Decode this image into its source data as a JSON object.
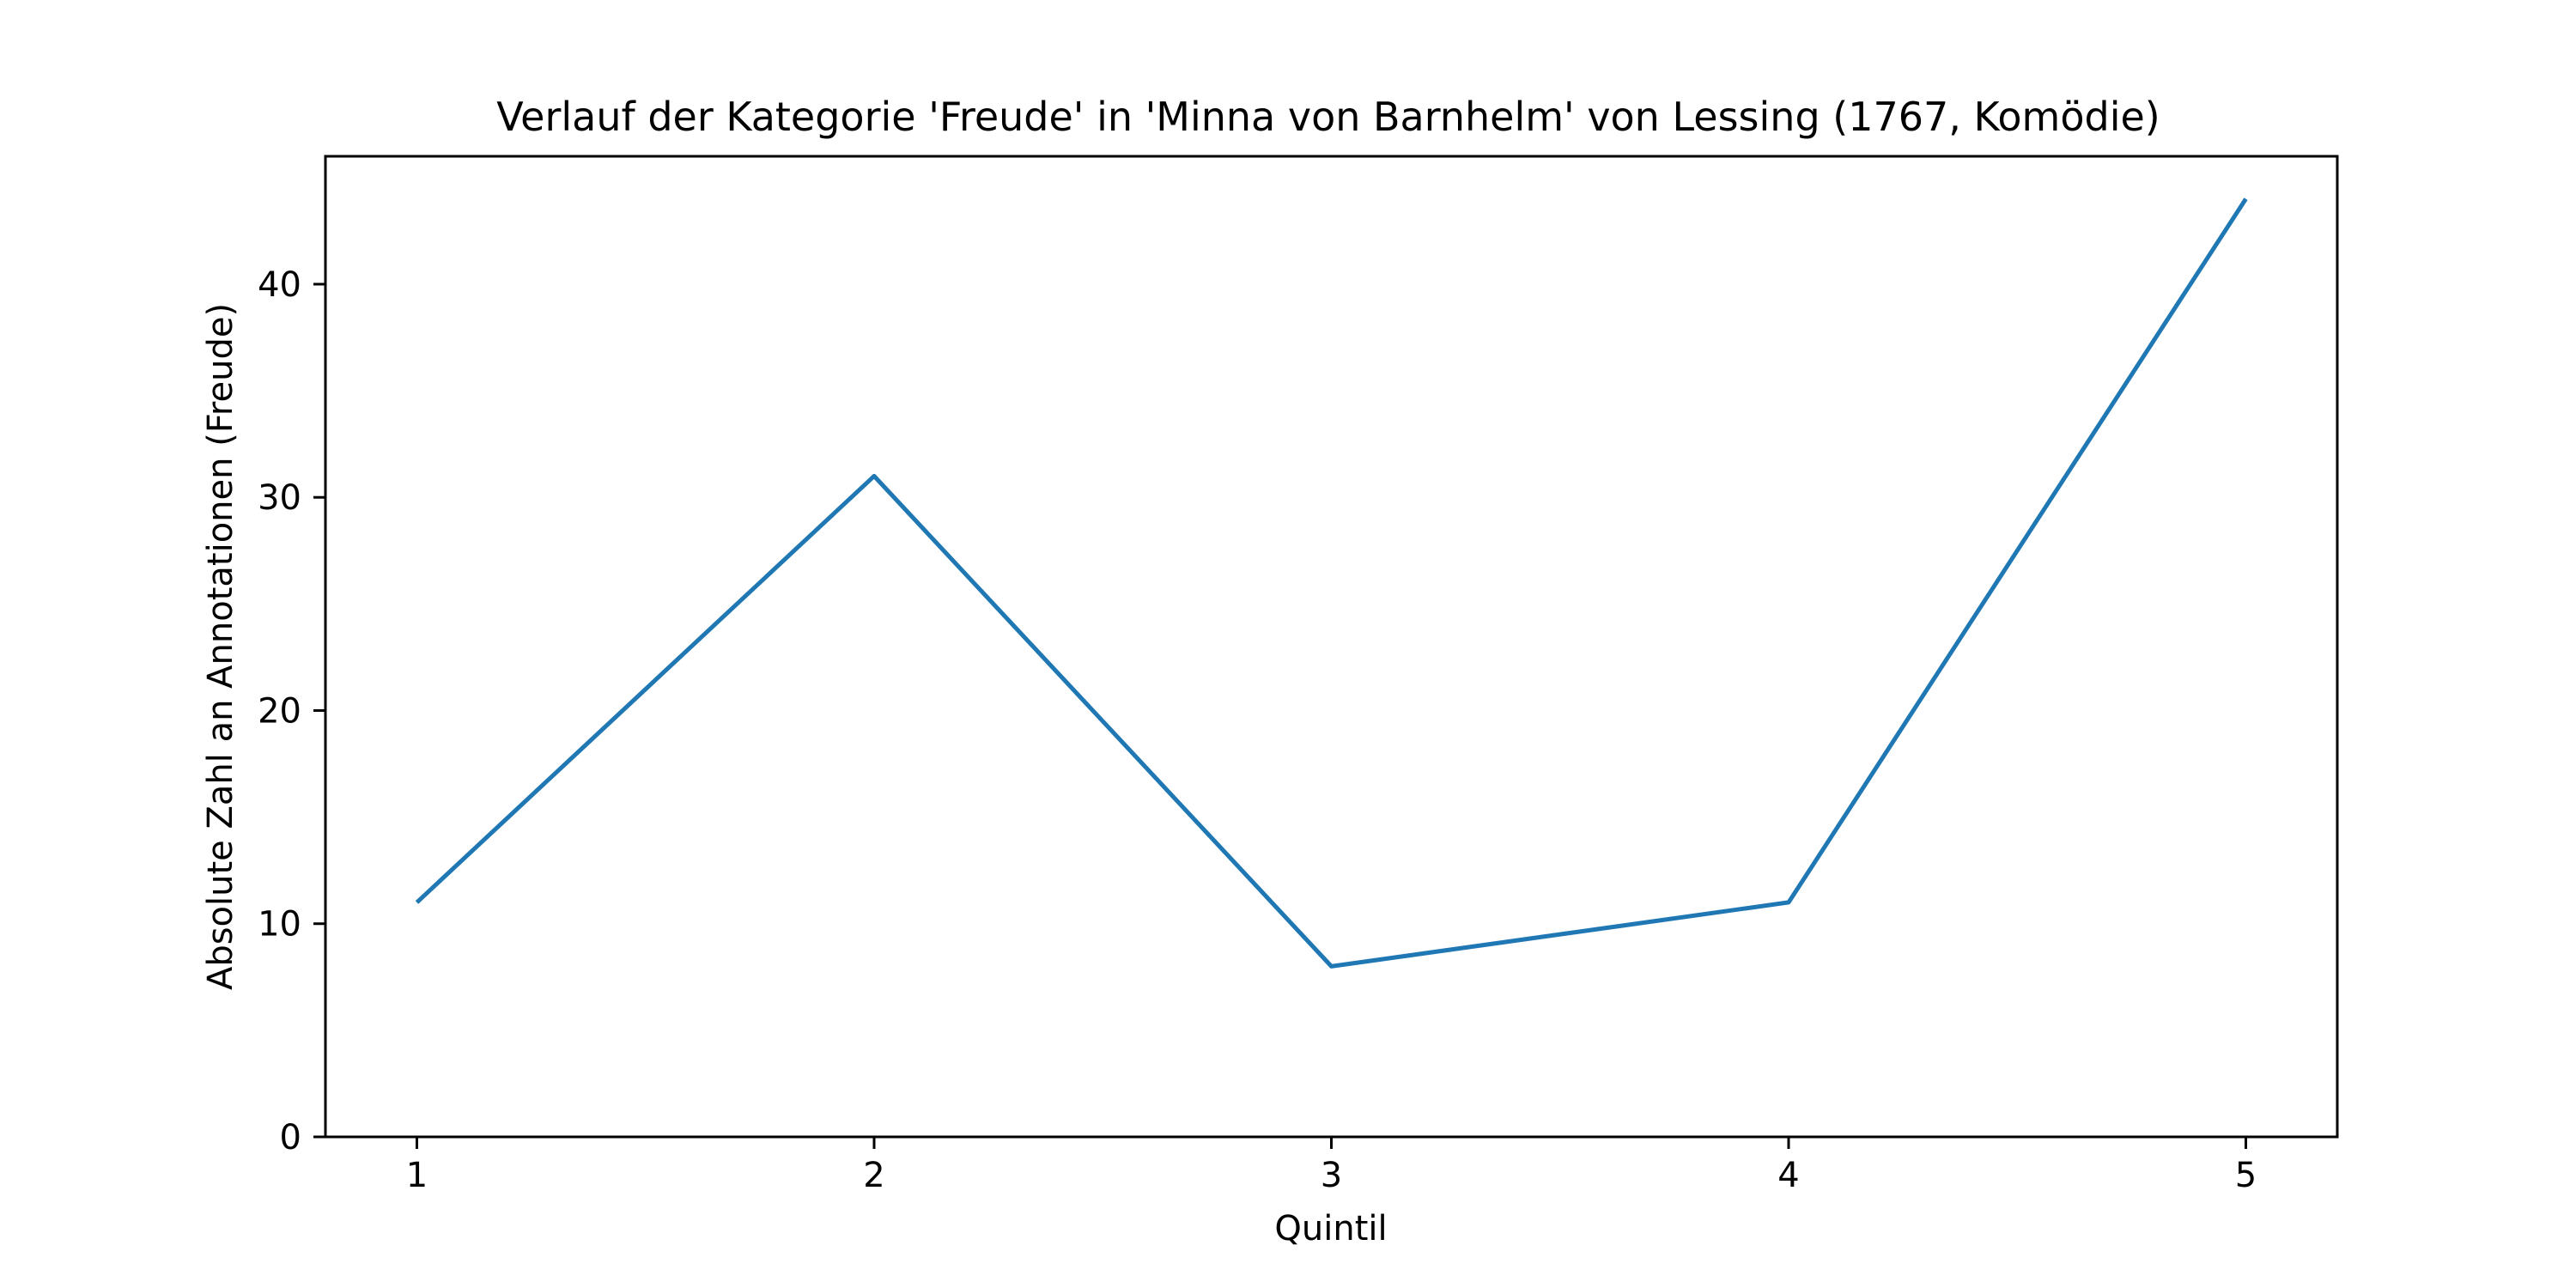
{
  "chart_data": {
    "type": "line",
    "title": "Verlauf der Kategorie 'Freude' in 'Minna von Barnhelm' von Lessing (1767, Komödie)",
    "xlabel": "Quintil",
    "ylabel": "Absolute Zahl an Annotationen (Freude)",
    "x": [
      1,
      2,
      3,
      4,
      5
    ],
    "x_tick_labels": [
      "1",
      "2",
      "3",
      "4",
      "5"
    ],
    "y_ticks": [
      0,
      10,
      20,
      30,
      40
    ],
    "y_tick_labels": [
      "0",
      "10",
      "20",
      "30",
      "40"
    ],
    "xlim": [
      0.8,
      5.2
    ],
    "ylim": [
      0,
      46
    ],
    "series": [
      {
        "values": [
          11,
          31,
          8,
          11,
          44
        ],
        "color": "#1f77b4"
      }
    ],
    "grid": false,
    "legend": false
  }
}
